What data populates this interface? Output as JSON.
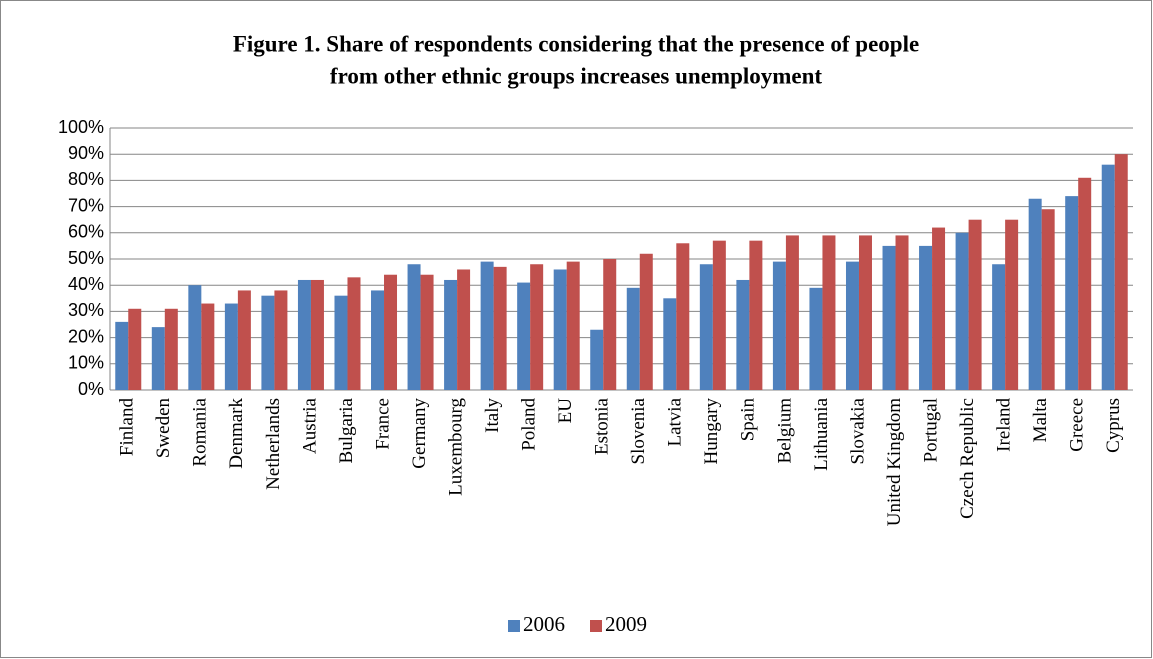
{
  "chart_data": {
    "type": "bar",
    "title": [
      "Figure 1. Share of respondents considering  that the presence of people",
      "from other ethnic groups increases unemployment"
    ],
    "categories": [
      "Finland",
      "Sweden",
      "Romania",
      "Denmark",
      "Netherlands",
      "Austria",
      "Bulgaria",
      "France",
      "Germany",
      "Luxembourg",
      "Italy",
      "Poland",
      "EU",
      "Estonia",
      "Slovenia",
      "Latvia",
      "Hungary",
      "Spain",
      "Belgium",
      "Lithuania",
      "Slovakia",
      "United Kingdom",
      "Portugal",
      "Czech Republic",
      "Ireland",
      "Malta",
      "Greece",
      "Cyprus"
    ],
    "series": [
      {
        "name": "2006",
        "color": "#4f81bd",
        "values": [
          26,
          24,
          40,
          33,
          36,
          42,
          36,
          38,
          48,
          42,
          49,
          41,
          46,
          23,
          39,
          35,
          48,
          42,
          49,
          39,
          49,
          55,
          55,
          60,
          48,
          73,
          74,
          86
        ]
      },
      {
        "name": "2009",
        "color": "#c0504d",
        "values": [
          31,
          31,
          33,
          38,
          38,
          42,
          43,
          44,
          44,
          46,
          47,
          48,
          49,
          50,
          52,
          56,
          57,
          57,
          59,
          59,
          59,
          59,
          62,
          65,
          65,
          69,
          81,
          90
        ]
      }
    ],
    "ylim": [
      0,
      100
    ],
    "yticks": [
      {
        "value": 0,
        "label": "0%"
      },
      {
        "value": 10,
        "label": "10%"
      },
      {
        "value": 20,
        "label": "20%"
      },
      {
        "value": 30,
        "label": "30%"
      },
      {
        "value": 40,
        "label": "40%"
      },
      {
        "value": 50,
        "label": "50%"
      },
      {
        "value": 60,
        "label": "60%"
      },
      {
        "value": 70,
        "label": "70%"
      },
      {
        "value": 80,
        "label": "80%"
      },
      {
        "value": 90,
        "label": "90%"
      },
      {
        "value": 100,
        "label": "100%"
      }
    ],
    "grid": true,
    "legend": "bottom"
  }
}
